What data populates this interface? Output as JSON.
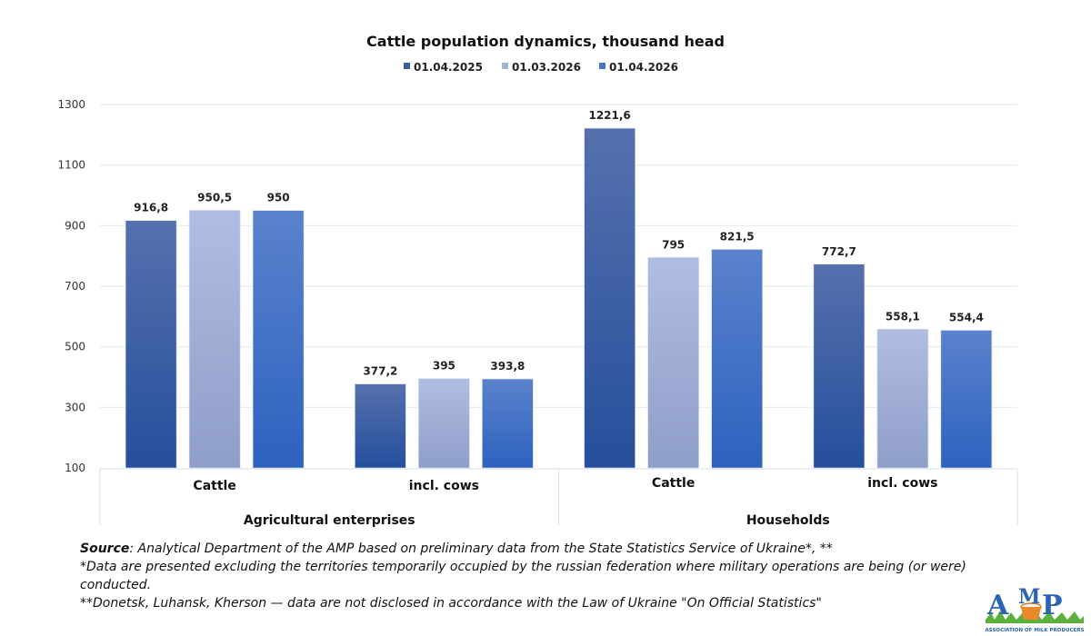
{
  "chart_data": {
    "type": "bar",
    "title": "Cattle population dynamics, thousand head",
    "xlabel": "",
    "ylabel": "",
    "ylim": [
      100,
      1300
    ],
    "yticks": [
      100,
      300,
      500,
      700,
      900,
      1100,
      1300
    ],
    "grid": true,
    "legend_position": "top",
    "categories": [
      "Cattle",
      "incl. cows",
      "Cattle",
      "incl. cows"
    ],
    "groups": [
      {
        "label": "Agricultural enterprises",
        "span": [
          0,
          1
        ]
      },
      {
        "label": "Households",
        "span": [
          2,
          3
        ]
      }
    ],
    "series": [
      {
        "name": "01.04.2025",
        "color": "#3a5ca6",
        "values": [
          916.8,
          377.2,
          1221.6,
          772.7
        ],
        "labels": [
          "916,8",
          "377,2",
          "1221,6",
          "772,7"
        ]
      },
      {
        "name": "01.03.2026",
        "color": "#a3b2da",
        "values": [
          950.5,
          395,
          795,
          558.1
        ],
        "labels": [
          "950,5",
          "395",
          "795",
          "558,1"
        ]
      },
      {
        "name": "01.04.2026",
        "color": "#4674cb",
        "values": [
          950,
          393.8,
          821.5,
          554.4
        ],
        "labels": [
          "950",
          "393,8",
          "821,5",
          "554,4"
        ]
      }
    ]
  },
  "footer": {
    "source_label": "Source",
    "source_text": ": Analytical Department of the AMP based on preliminary data from the State Statistics Service of Ukraine*, **",
    "note1": "*Data are presented excluding the territories temporarily occupied by the russian federation where military operations are being (or were) conducted.",
    "note2": "**Donetsk, Luhansk, Kherson — data are not disclosed in accordance with the Law of Ukraine \"On Official Statistics\""
  },
  "logo": {
    "text": "AMP",
    "subtitle": "Association of milk producers"
  }
}
